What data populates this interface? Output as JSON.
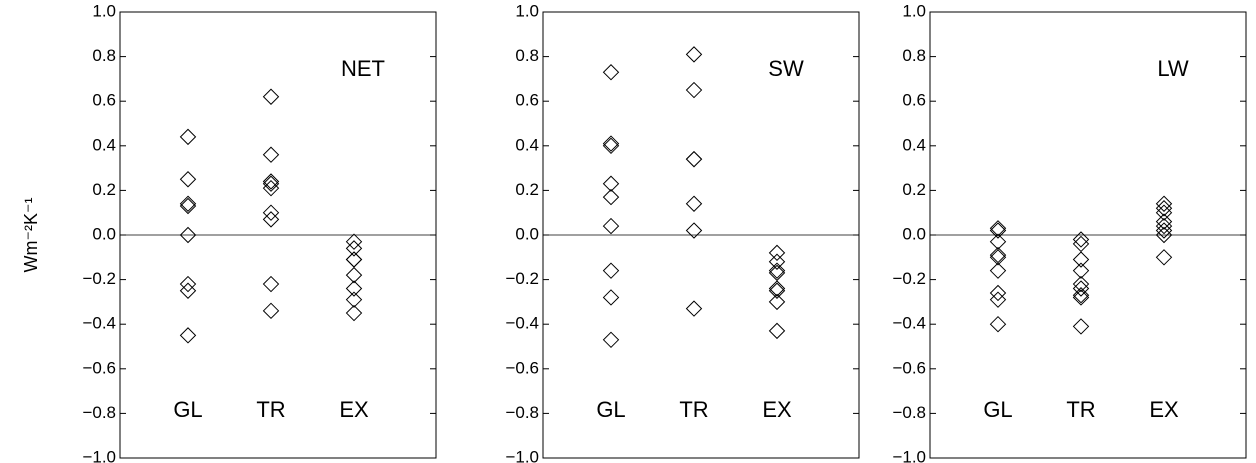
{
  "chart_data": [
    {
      "type": "scatter",
      "label": "NET",
      "ylabel": "Wm⁻²K⁻¹",
      "marker": "diamond",
      "color": "#000000",
      "zero_line": true,
      "categories": [
        "GL",
        "TR",
        "EX"
      ],
      "values": [
        [
          0.44,
          0.25,
          0.14,
          0.13,
          0.0,
          -0.22,
          -0.25,
          -0.45
        ],
        [
          0.62,
          0.36,
          0.24,
          0.23,
          0.21,
          0.1,
          0.07,
          -0.22,
          -0.34
        ],
        [
          -0.03,
          -0.06,
          -0.11,
          -0.11,
          -0.18,
          -0.24,
          -0.29,
          -0.35
        ]
      ],
      "ylim": [
        -1,
        1
      ],
      "yticks": [
        {
          "value": 1,
          "label": "1.0"
        },
        {
          "value": 0.8,
          "label": "0.8"
        },
        {
          "value": 0.6,
          "label": "0.6"
        },
        {
          "value": 0.4,
          "label": "0.4"
        },
        {
          "value": 0.2,
          "label": "0.2"
        },
        {
          "value": 0,
          "label": "0.0"
        },
        {
          "value": -0.2,
          "label": "−0.2"
        },
        {
          "value": -0.4,
          "label": "−0.4"
        },
        {
          "value": -0.6,
          "label": "−0.6"
        },
        {
          "value": -0.8,
          "label": "−0.8"
        },
        {
          "value": -1,
          "label": "−1.0"
        }
      ]
    },
    {
      "type": "scatter",
      "label": "SW",
      "marker": "diamond",
      "color": "#000000",
      "zero_line": true,
      "categories": [
        "GL",
        "TR",
        "EX"
      ],
      "values": [
        [
          0.73,
          0.41,
          0.4,
          0.23,
          0.17,
          0.04,
          -0.16,
          -0.28,
          -0.47
        ],
        [
          0.81,
          0.65,
          0.34,
          0.34,
          0.14,
          0.02,
          -0.33
        ],
        [
          -0.08,
          -0.12,
          -0.16,
          -0.17,
          -0.24,
          -0.25,
          -0.3,
          -0.43
        ]
      ],
      "ylim": [
        -1,
        1
      ],
      "yticks": [
        {
          "value": 1,
          "label": "1.0"
        },
        {
          "value": 0.8,
          "label": "0.8"
        },
        {
          "value": 0.6,
          "label": "0.6"
        },
        {
          "value": 0.4,
          "label": "0.4"
        },
        {
          "value": 0.2,
          "label": "0.2"
        },
        {
          "value": 0,
          "label": "0.0"
        },
        {
          "value": -0.2,
          "label": "−0.2"
        },
        {
          "value": -0.4,
          "label": "−0.4"
        },
        {
          "value": -0.6,
          "label": "−0.6"
        },
        {
          "value": -0.8,
          "label": "−0.8"
        },
        {
          "value": -1,
          "label": "−1.0"
        }
      ]
    },
    {
      "type": "scatter",
      "label": "LW",
      "marker": "diamond",
      "color": "#000000",
      "zero_line": true,
      "categories": [
        "GL",
        "TR",
        "EX"
      ],
      "values": [
        [
          0.03,
          0.02,
          -0.03,
          -0.09,
          -0.1,
          -0.16,
          -0.26,
          -0.29,
          -0.4
        ],
        [
          -0.02,
          -0.04,
          -0.11,
          -0.16,
          -0.22,
          -0.24,
          -0.27,
          -0.28,
          -0.41
        ],
        [
          0.14,
          0.12,
          0.1,
          0.06,
          0.04,
          0.02,
          0.0,
          -0.1
        ]
      ],
      "ylim": [
        -1,
        1
      ],
      "yticks": [
        {
          "value": 1,
          "label": "1.0"
        },
        {
          "value": 0.8,
          "label": "0.8"
        },
        {
          "value": 0.6,
          "label": "0.6"
        },
        {
          "value": 0.4,
          "label": "0.4"
        },
        {
          "value": 0.2,
          "label": "0.2"
        },
        {
          "value": 0,
          "label": "0.0"
        },
        {
          "value": -0.2,
          "label": "−0.2"
        },
        {
          "value": -0.4,
          "label": "−0.4"
        },
        {
          "value": -0.6,
          "label": "−0.6"
        },
        {
          "value": -0.8,
          "label": "−0.8"
        },
        {
          "value": -1,
          "label": "−1.0"
        }
      ]
    }
  ]
}
